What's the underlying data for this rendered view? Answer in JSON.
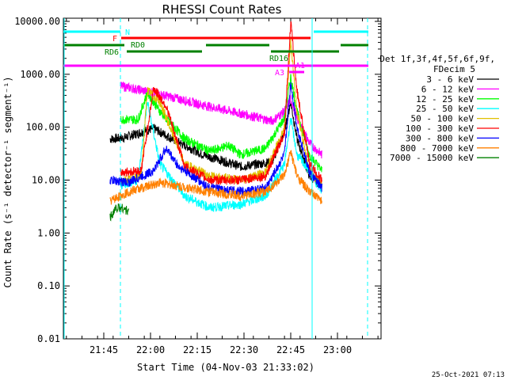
{
  "chart_data": {
    "type": "line",
    "title": "RHESSI Count Rates",
    "xlabel": "Start Time (04-Nov-03 21:33:02)",
    "ylabel": "Count Rate (s⁻¹ detector⁻¹ segment⁻¹)",
    "y_scale": "log",
    "ylim": [
      0.01,
      20000
    ],
    "xlim_minutes": [
      0,
      75
    ],
    "x_ticks": [
      {
        "label": "21:45",
        "t": 12.0
      },
      {
        "label": "22:00",
        "t": 27.0
      },
      {
        "label": "22:15",
        "t": 42.0
      },
      {
        "label": "22:30",
        "t": 57.0
      },
      {
        "label": "22:45",
        "t": 72.0
      },
      {
        "label": "23:00",
        "t": 87.0
      }
    ],
    "y_ticks": [
      "10000.00",
      "1000.00",
      "100.00",
      "10.00",
      "1.00",
      "0.10",
      "0.01"
    ],
    "legend_header": [
      "Det 1f,3f,4f,5f,6f,9f,",
      "FDecim 5"
    ],
    "grid": false,
    "series": [
      {
        "name": "3 - 6 keV",
        "color": "#000000"
      },
      {
        "name": "6 - 12 keV",
        "color": "#ff00ff"
      },
      {
        "name": "12 - 25 keV",
        "color": "#00ff00"
      },
      {
        "name": "25 - 50 keV",
        "color": "#00ffff"
      },
      {
        "name": "50 - 100 keV",
        "color": "#e0c000"
      },
      {
        "name": "100 - 300 keV",
        "color": "#ff0000"
      },
      {
        "name": "300 - 800 keV",
        "color": "#0000ff"
      },
      {
        "name": "800 - 7000 keV",
        "color": "#ff8000"
      },
      {
        "name": "7000 - 15000 keV",
        "color": "#008000"
      }
    ],
    "annotations": {
      "N": "N",
      "F": "F",
      "RD0": "RD0",
      "RD6": "RD6",
      "RD16": "RD16",
      "A1": "A1",
      "A3": "A3"
    }
  },
  "footer_timestamp": "25-Oct-2021 07:13"
}
